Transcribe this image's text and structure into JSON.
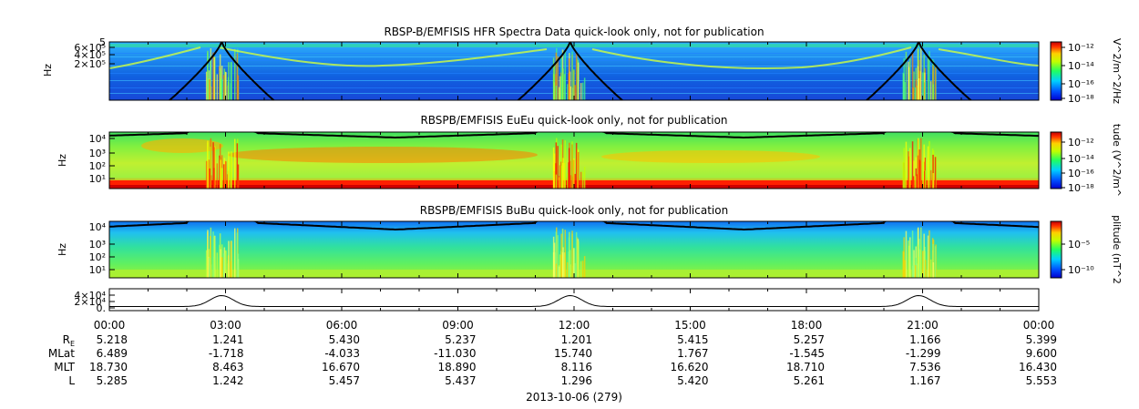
{
  "chart_data": [
    {
      "type": "heatmap",
      "title": "RBSP-B/EMFISIS  HFR Spectra Data quick-look only, not for publication",
      "ylabel": "Hz",
      "y_ticks": [
        "2×10⁵",
        "4×10⁵",
        "6×10⁵",
        "5"
      ],
      "colorbar_label": "V^2/m^2/Hz",
      "colorbar_ticks": [
        "10⁻¹²",
        "10⁻¹⁴",
        "10⁻¹⁶",
        "10⁻¹⁸"
      ],
      "colormap": [
        "#7f0000",
        "#ff0000",
        "#ffff00",
        "#00ff00",
        "#00ffff",
        "#0000ff"
      ]
    },
    {
      "type": "heatmap",
      "title": "RBSPB/EMFISIS  EuEu quick-look only, not for publication",
      "ylabel": "Hz",
      "y_ticks": [
        "10¹",
        "10²",
        "10³",
        "10⁴"
      ],
      "colorbar_label": "tude (V^2/m^",
      "colorbar_ticks": [
        "10⁻¹²",
        "10⁻¹⁴",
        "10⁻¹⁶",
        "10⁻¹⁸"
      ]
    },
    {
      "type": "heatmap",
      "title": "RBSPB/EMFISIS  BuBu quick-look only, not for publication",
      "ylabel": "Hz",
      "y_ticks": [
        "10¹",
        "10²",
        "10³",
        "10⁴"
      ],
      "colorbar_label": "plitude (nT^2",
      "colorbar_ticks": [
        "10⁻⁵",
        "10⁻¹⁰"
      ]
    },
    {
      "type": "line",
      "y_ticks": [
        "0.",
        "2×10⁴",
        "4×10⁴"
      ],
      "peaks_at_hours": [
        2.9,
        11.9,
        20.9
      ]
    }
  ],
  "x_ticks": [
    "00:00",
    "03:00",
    "06:00",
    "09:00",
    "12:00",
    "15:00",
    "18:00",
    "21:00",
    "00:00"
  ],
  "ephemeris": [
    {
      "label": "R",
      "sub": "E",
      "values": [
        "5.218",
        "1.241",
        "5.430",
        "5.237",
        "1.201",
        "5.415",
        "5.257",
        "1.166",
        "5.399"
      ]
    },
    {
      "label": "MLat",
      "sub": "",
      "values": [
        "6.489",
        "-1.718",
        "-4.033",
        "-11.030",
        "15.740",
        "1.767",
        "-1.545",
        "-1.299",
        "9.600"
      ]
    },
    {
      "label": "MLT",
      "sub": "",
      "values": [
        "18.730",
        "8.463",
        "16.670",
        "18.890",
        "8.116",
        "16.620",
        "18.710",
        "7.536",
        "16.430"
      ]
    },
    {
      "label": "L",
      "sub": "",
      "values": [
        "5.285",
        "1.242",
        "5.457",
        "5.437",
        "1.296",
        "5.420",
        "5.261",
        "1.167",
        "5.553"
      ]
    }
  ],
  "date_label": "2013-10-06 (279)"
}
